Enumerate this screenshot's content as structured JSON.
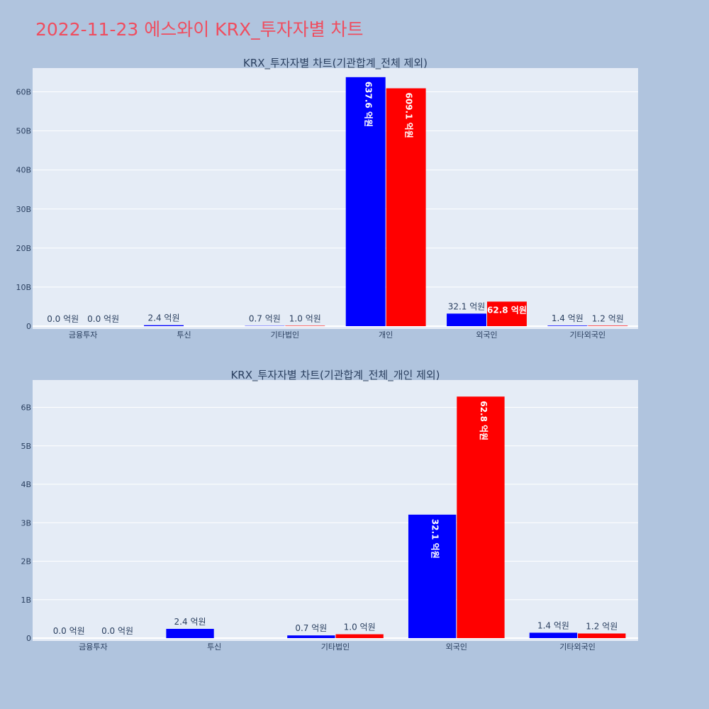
{
  "page": {
    "title": "2022-11-23 에스와이 KRX_투자자별 차트"
  },
  "colors": {
    "series_a": "#0000ff",
    "series_b": "#ff0000",
    "plot_bg": "#e5ecf6",
    "page_bg": "#b0c4de",
    "title": "#ef4d5f"
  },
  "chart_data": [
    {
      "type": "bar",
      "title": "KRX_투자자별 차트(기관합계_전체 제외)",
      "categories": [
        "금융투자",
        "투신",
        "기타법인",
        "개인",
        "외국인",
        "기타외국인"
      ],
      "series": [
        {
          "values": [
            0,
            240000000,
            70000000,
            63760000000,
            3210000000,
            140000000
          ],
          "labels": [
            "0.0 억원",
            "2.4 억원",
            "0.7 억원",
            "637.6 억원",
            "32.1 억원",
            "1.4 억원"
          ]
        },
        {
          "values": [
            0,
            null,
            100000000,
            60910000000,
            6280000000,
            120000000
          ],
          "labels": [
            "0.0 억원",
            "",
            "1.0 억원",
            "609.1 억원",
            "62.8 억원",
            "1.2 억원"
          ]
        }
      ],
      "ylim": [
        0,
        65000000000
      ],
      "yticks": [
        0,
        10000000000,
        20000000000,
        30000000000,
        40000000000,
        50000000000,
        60000000000
      ],
      "ytick_labels": [
        "0",
        "10B",
        "20B",
        "30B",
        "40B",
        "50B",
        "60B"
      ],
      "grid": true
    },
    {
      "type": "bar",
      "title": "KRX_투자자별 차트(기관합계_전체_개인 제외)",
      "categories": [
        "금융투자",
        "투신",
        "기타법인",
        "외국인",
        "기타외국인"
      ],
      "series": [
        {
          "values": [
            0,
            240000000,
            70000000,
            3210000000,
            140000000
          ],
          "labels": [
            "0.0 억원",
            "2.4 억원",
            "0.7 억원",
            "32.1 억원",
            "1.4 억원"
          ]
        },
        {
          "values": [
            0,
            null,
            100000000,
            6280000000,
            120000000
          ],
          "labels": [
            "0.0 억원",
            "",
            "1.0 억원",
            "62.8 억원",
            "1.2 억원"
          ]
        }
      ],
      "ylim": [
        0,
        6600000000
      ],
      "yticks": [
        0,
        1000000000,
        2000000000,
        3000000000,
        4000000000,
        5000000000,
        6000000000
      ],
      "ytick_labels": [
        "0",
        "1B",
        "2B",
        "3B",
        "4B",
        "5B",
        "6B"
      ],
      "grid": true
    }
  ]
}
